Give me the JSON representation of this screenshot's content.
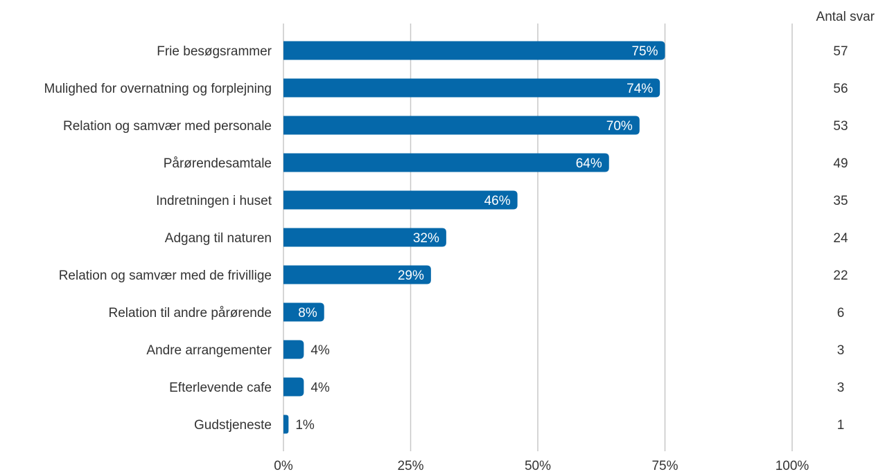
{
  "count_header": "Antal svar",
  "colors": {
    "bar": "#0568aa",
    "grid": "#c7c7c7",
    "text": "#333333",
    "inside_label": "#ffffff"
  },
  "chart_data": {
    "type": "bar",
    "orientation": "horizontal",
    "categories": [
      "Frie besøgsrammer",
      "Mulighed for overnatning og forplejning",
      "Relation og samvær med personale",
      "Pårørendesamtale",
      "Indretningen i huset",
      "Adgang til naturen",
      "Relation og samvær med de frivillige",
      "Relation til andre pårørende",
      "Andre arrangementer",
      "Efterlevende cafe",
      "Gudstjeneste"
    ],
    "values": [
      75,
      74,
      70,
      64,
      46,
      32,
      29,
      8,
      4,
      4,
      1
    ],
    "value_labels": [
      "75%",
      "74%",
      "70%",
      "64%",
      "46%",
      "32%",
      "29%",
      "8%",
      "4%",
      "4%",
      "1%"
    ],
    "counts": [
      57,
      56,
      53,
      49,
      35,
      24,
      22,
      6,
      3,
      3,
      1
    ],
    "xlim": [
      0,
      100
    ],
    "xticks": [
      0,
      25,
      50,
      75,
      100
    ],
    "xtick_labels": [
      "0%",
      "25%",
      "50%",
      "75%",
      "100%"
    ],
    "grid": true,
    "legend": "none"
  }
}
